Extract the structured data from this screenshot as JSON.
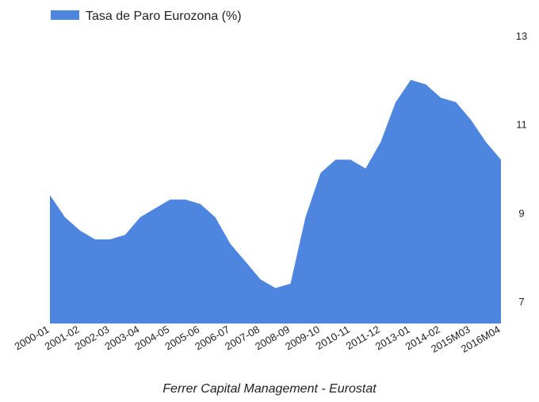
{
  "legend": {
    "label": "Tasa de Paro Eurozona (%)"
  },
  "caption": "Ferrer Capital Management - Eurostat",
  "colors": {
    "series": "#4e86df",
    "text": "#222222"
  },
  "chart_data": {
    "type": "area",
    "title": "",
    "xlabel": "",
    "ylabel": "",
    "ylim": [
      6.5,
      13
    ],
    "yticks": [
      7,
      9,
      11,
      13
    ],
    "grid": false,
    "legend_position": "top-left",
    "y_axis_side": "right",
    "x_tick_labels": [
      "2000-01",
      "2001-02",
      "2002-03",
      "2003-04",
      "2004-05",
      "2005-06",
      "2006-07",
      "2007-08",
      "2008-09",
      "2009-10",
      "2010-11",
      "2011-12",
      "2013-01",
      "2014-02",
      "2015M03",
      "2016M04"
    ],
    "series": [
      {
        "name": "Tasa de Paro Eurozona (%)",
        "x": [
          "2000-01",
          "2000-07",
          "2001-02",
          "2001-07",
          "2002-03",
          "2002-09",
          "2003-04",
          "2003-10",
          "2004-05",
          "2004-11",
          "2005-06",
          "2005-12",
          "2006-07",
          "2007-01",
          "2007-08",
          "2008-03",
          "2008-09",
          "2009-03",
          "2009-10",
          "2010-04",
          "2010-11",
          "2011-05",
          "2011-12",
          "2012-06",
          "2013-01",
          "2013-08",
          "2014-02",
          "2014-09",
          "2015M03",
          "2015M10",
          "2016M04"
        ],
        "values": [
          9.4,
          8.9,
          8.6,
          8.4,
          8.4,
          8.5,
          8.9,
          9.1,
          9.3,
          9.3,
          9.2,
          8.9,
          8.3,
          7.9,
          7.5,
          7.3,
          7.4,
          8.9,
          9.9,
          10.2,
          10.2,
          10.0,
          10.6,
          11.5,
          12.0,
          11.9,
          11.6,
          11.5,
          11.1,
          10.6,
          10.2
        ]
      }
    ]
  }
}
